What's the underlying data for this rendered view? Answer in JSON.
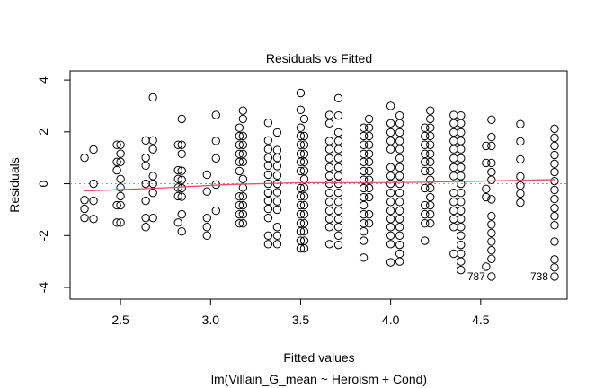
{
  "chart_data": {
    "type": "scatter",
    "title": "Residuals vs Fitted",
    "xlabel": "Fitted values",
    "ylabel": "Residuals",
    "subtitle": "lm(Villain_G_mean ~ Heroism + Cond)",
    "xlim": [
      2.22,
      4.98
    ],
    "ylim": [
      -4.45,
      4.35
    ],
    "xticks": [
      "2.5",
      "3.0",
      "3.5",
      "4.0",
      "4.5"
    ],
    "yticks": [
      "-4",
      "-2",
      "0",
      "2",
      "4"
    ],
    "grid": false,
    "zero_line": true,
    "colors": {
      "points": "#000000",
      "smooth": "#df536b",
      "zero": "#999999"
    },
    "columns": [
      {
        "x": 2.3,
        "residuals": [
          1.0,
          -0.63,
          -0.97,
          -1.32
        ]
      },
      {
        "x": 2.35,
        "residuals": [
          1.32,
          0,
          -0.66,
          -1.36
        ]
      },
      {
        "x": 2.48,
        "residuals": [
          1.5,
          0.84,
          0.52,
          -0.83,
          -1.5
        ]
      },
      {
        "x": 2.5,
        "residuals": [
          1.5,
          1.16,
          0.84,
          0.18,
          -0.15,
          -0.48,
          -0.83,
          -1.5
        ]
      },
      {
        "x": 2.64,
        "residuals": [
          1.67,
          1.0,
          0.7,
          0,
          -0.66,
          -1.32,
          -1.67
        ]
      },
      {
        "x": 2.68,
        "residuals": [
          3.33,
          1.67,
          1.33,
          0.3,
          0,
          -0.35,
          -1.32
        ]
      },
      {
        "x": 2.82,
        "residuals": [
          1.5,
          0.52,
          0.18,
          -0.15,
          -0.48,
          -1.5
        ]
      },
      {
        "x": 2.84,
        "residuals": [
          2.5,
          1.5,
          1.15,
          0.5,
          0.15,
          -0.17,
          -0.5,
          -1.18,
          -1.84
        ]
      },
      {
        "x": 2.98,
        "residuals": [
          0.35,
          -0.3,
          -1.32,
          -1.67,
          -2.0
        ]
      },
      {
        "x": 3.03,
        "residuals": [
          2.65,
          1.65,
          0.98,
          -0.03,
          -1.04
        ]
      },
      {
        "x": 3.16,
        "residuals": [
          2.16,
          1.84,
          1.5,
          1.15,
          0.84,
          0.49,
          -0.49,
          -0.83,
          -1.18,
          -1.53
        ]
      },
      {
        "x": 3.18,
        "residuals": [
          2.82,
          2.5,
          1.84,
          1.5,
          1.15,
          0.84,
          0.18,
          -0.15,
          -0.49,
          -0.83,
          -1.18,
          -1.53
        ]
      },
      {
        "x": 3.32,
        "residuals": [
          2.35,
          1.67,
          1.33,
          1.0,
          0.7,
          0.35,
          0,
          -0.35,
          -0.66,
          -0.97,
          -1.32,
          -2.0,
          -2.33
        ]
      },
      {
        "x": 3.37,
        "residuals": [
          1.98,
          1.3,
          1.0,
          0.68,
          0.32,
          0,
          -0.33,
          -0.68,
          -1.0,
          -1.67,
          -2.0,
          -2.33
        ]
      },
      {
        "x": 3.5,
        "residuals": [
          3.5,
          2.85,
          2.16,
          1.84,
          1.5,
          1.15,
          0.84,
          0.49,
          -0.17,
          -0.49,
          -0.83,
          -1.18,
          -1.53,
          -1.84,
          -2.2,
          -2.5
        ]
      },
      {
        "x": 3.52,
        "residuals": [
          2.5,
          1.84,
          1.5,
          1.15,
          0.84,
          0.5,
          0.18,
          -0.15,
          -0.49,
          -0.83,
          -1.18,
          -1.53,
          -1.84,
          -2.2,
          -2.5
        ]
      },
      {
        "x": 3.66,
        "residuals": [
          2.65,
          2.33,
          1.65,
          1.33,
          0.98,
          0.63,
          0.3,
          0,
          -0.35,
          -0.7,
          -1.04,
          -1.36,
          -1.67,
          -2.33
        ]
      },
      {
        "x": 3.71,
        "residuals": [
          3.3,
          2.63,
          1.98,
          1.65,
          1.33,
          0.98,
          0.63,
          0.3,
          0,
          -0.35,
          -0.7,
          -1.04,
          -1.36,
          -1.67,
          -2.0,
          -2.36
        ]
      },
      {
        "x": 3.85,
        "residuals": [
          2.16,
          1.84,
          1.5,
          1.15,
          0.84,
          0.49,
          0.15,
          -0.17,
          -0.52,
          -0.83,
          -1.18,
          -1.53,
          -1.84,
          -2.2,
          -2.85
        ]
      },
      {
        "x": 3.88,
        "residuals": [
          2.5,
          2.16,
          1.84,
          1.5,
          1.15,
          0.84,
          0.49,
          0.15,
          -0.17,
          -0.52,
          -1.18,
          -1.53
        ]
      },
      {
        "x": 4.0,
        "residuals": [
          3.0,
          2.33,
          1.98,
          1.65,
          1.33,
          0.63,
          0.3,
          0,
          -0.35,
          -0.7,
          -1.04,
          -1.36,
          -1.67,
          -2.0,
          -2.33,
          -3.03
        ]
      },
      {
        "x": 4.05,
        "residuals": [
          2.63,
          2.33,
          1.98,
          1.65,
          1.33,
          0.98,
          0.63,
          0.3,
          0,
          -0.35,
          -0.7,
          -1.04,
          -1.36,
          -1.67,
          -2.0,
          -2.36,
          -2.7,
          -3.0
        ]
      },
      {
        "x": 4.19,
        "residuals": [
          2.16,
          1.84,
          1.5,
          1.15,
          0.84,
          0.49,
          -0.17,
          -0.83,
          -1.18,
          -1.53,
          -2.2
        ]
      },
      {
        "x": 4.22,
        "residuals": [
          2.82,
          2.5,
          2.16,
          1.84,
          1.5,
          1.15,
          0.84,
          0.49,
          0.15,
          -0.17,
          -0.52,
          -0.83,
          -1.18,
          -1.53
        ]
      },
      {
        "x": 4.35,
        "residuals": [
          2.65,
          2.33,
          1.98,
          1.65,
          1.33,
          0.98,
          0.63,
          0.3,
          -0.35,
          -0.7,
          -1.04,
          -1.36,
          -1.67,
          -2.7
        ]
      },
      {
        "x": 4.39,
        "residuals": [
          2.63,
          2.33,
          1.98,
          1.65,
          1.33,
          0.98,
          0.63,
          0.3,
          0,
          -0.35,
          -0.7,
          -1.04,
          -1.36,
          -1.67,
          -2.0,
          -2.36,
          -2.7,
          -3.0,
          -3.33
        ]
      },
      {
        "x": 4.53,
        "residuals": [
          1.46,
          0.8,
          -0.2,
          -0.52,
          -3.2
        ]
      },
      {
        "x": 4.56,
        "residuals": [
          2.47,
          1.8,
          1.46,
          0.8,
          0.45,
          0.15,
          -0.6,
          -1.25,
          -1.57,
          -1.9,
          -2.23,
          -2.57,
          -2.9,
          -3.58
        ]
      },
      {
        "x": 4.72,
        "residuals": [
          2.3,
          1.63,
          0.94,
          0.28,
          -0.07,
          -0.38,
          -0.73
        ]
      },
      {
        "x": 4.91,
        "residuals": [
          2.12,
          1.77,
          1.46,
          1.11,
          0.77,
          0.45,
          0.1,
          -0.24,
          -0.59,
          -0.94,
          -1.25,
          -1.6,
          -2.23,
          -2.92,
          -3.23,
          -3.58
        ]
      }
    ],
    "smooth": {
      "x": [
        2.3,
        2.7,
        3.1,
        3.5,
        3.8,
        4.1,
        4.5,
        4.91
      ],
      "y": [
        -0.28,
        -0.17,
        -0.03,
        0.04,
        0.04,
        0.05,
        0.1,
        0.16
      ]
    },
    "annotations": [
      {
        "text": "787",
        "x": 4.56,
        "y": -3.58
      },
      {
        "text": "738",
        "x": 4.91,
        "y": -3.58
      }
    ]
  }
}
